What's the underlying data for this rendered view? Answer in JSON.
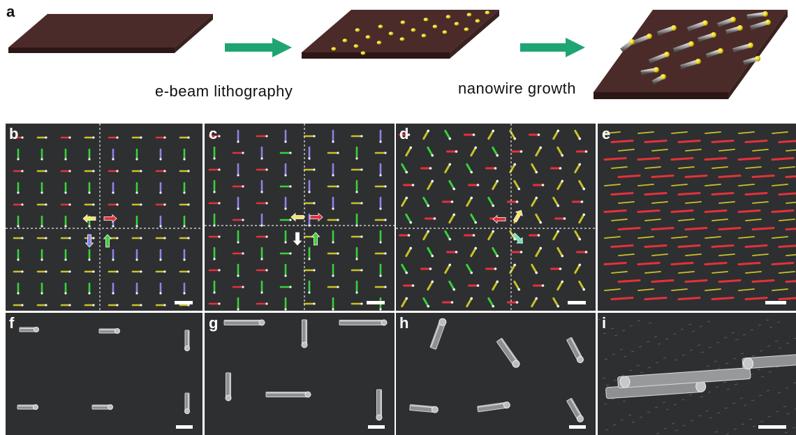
{
  "figure": {
    "panel_labels": [
      "a",
      "b",
      "c",
      "d",
      "e",
      "f",
      "g",
      "h",
      "i"
    ],
    "step1_caption": "e-beam lithography",
    "step2_caption": "nanowire growth"
  },
  "colors": {
    "substrate_top": "#4a2a28",
    "substrate_side": "#2e1918",
    "catalyst": "#e8d21a",
    "arrow_green": "#1fa571",
    "sem_bg": "#2e2f31",
    "nw_red": "#e2323a",
    "nw_green": "#3ad13a",
    "nw_blue": "#8b84e6",
    "nw_yellow": "#c8c22a",
    "scalebar": "#ffffff"
  }
}
